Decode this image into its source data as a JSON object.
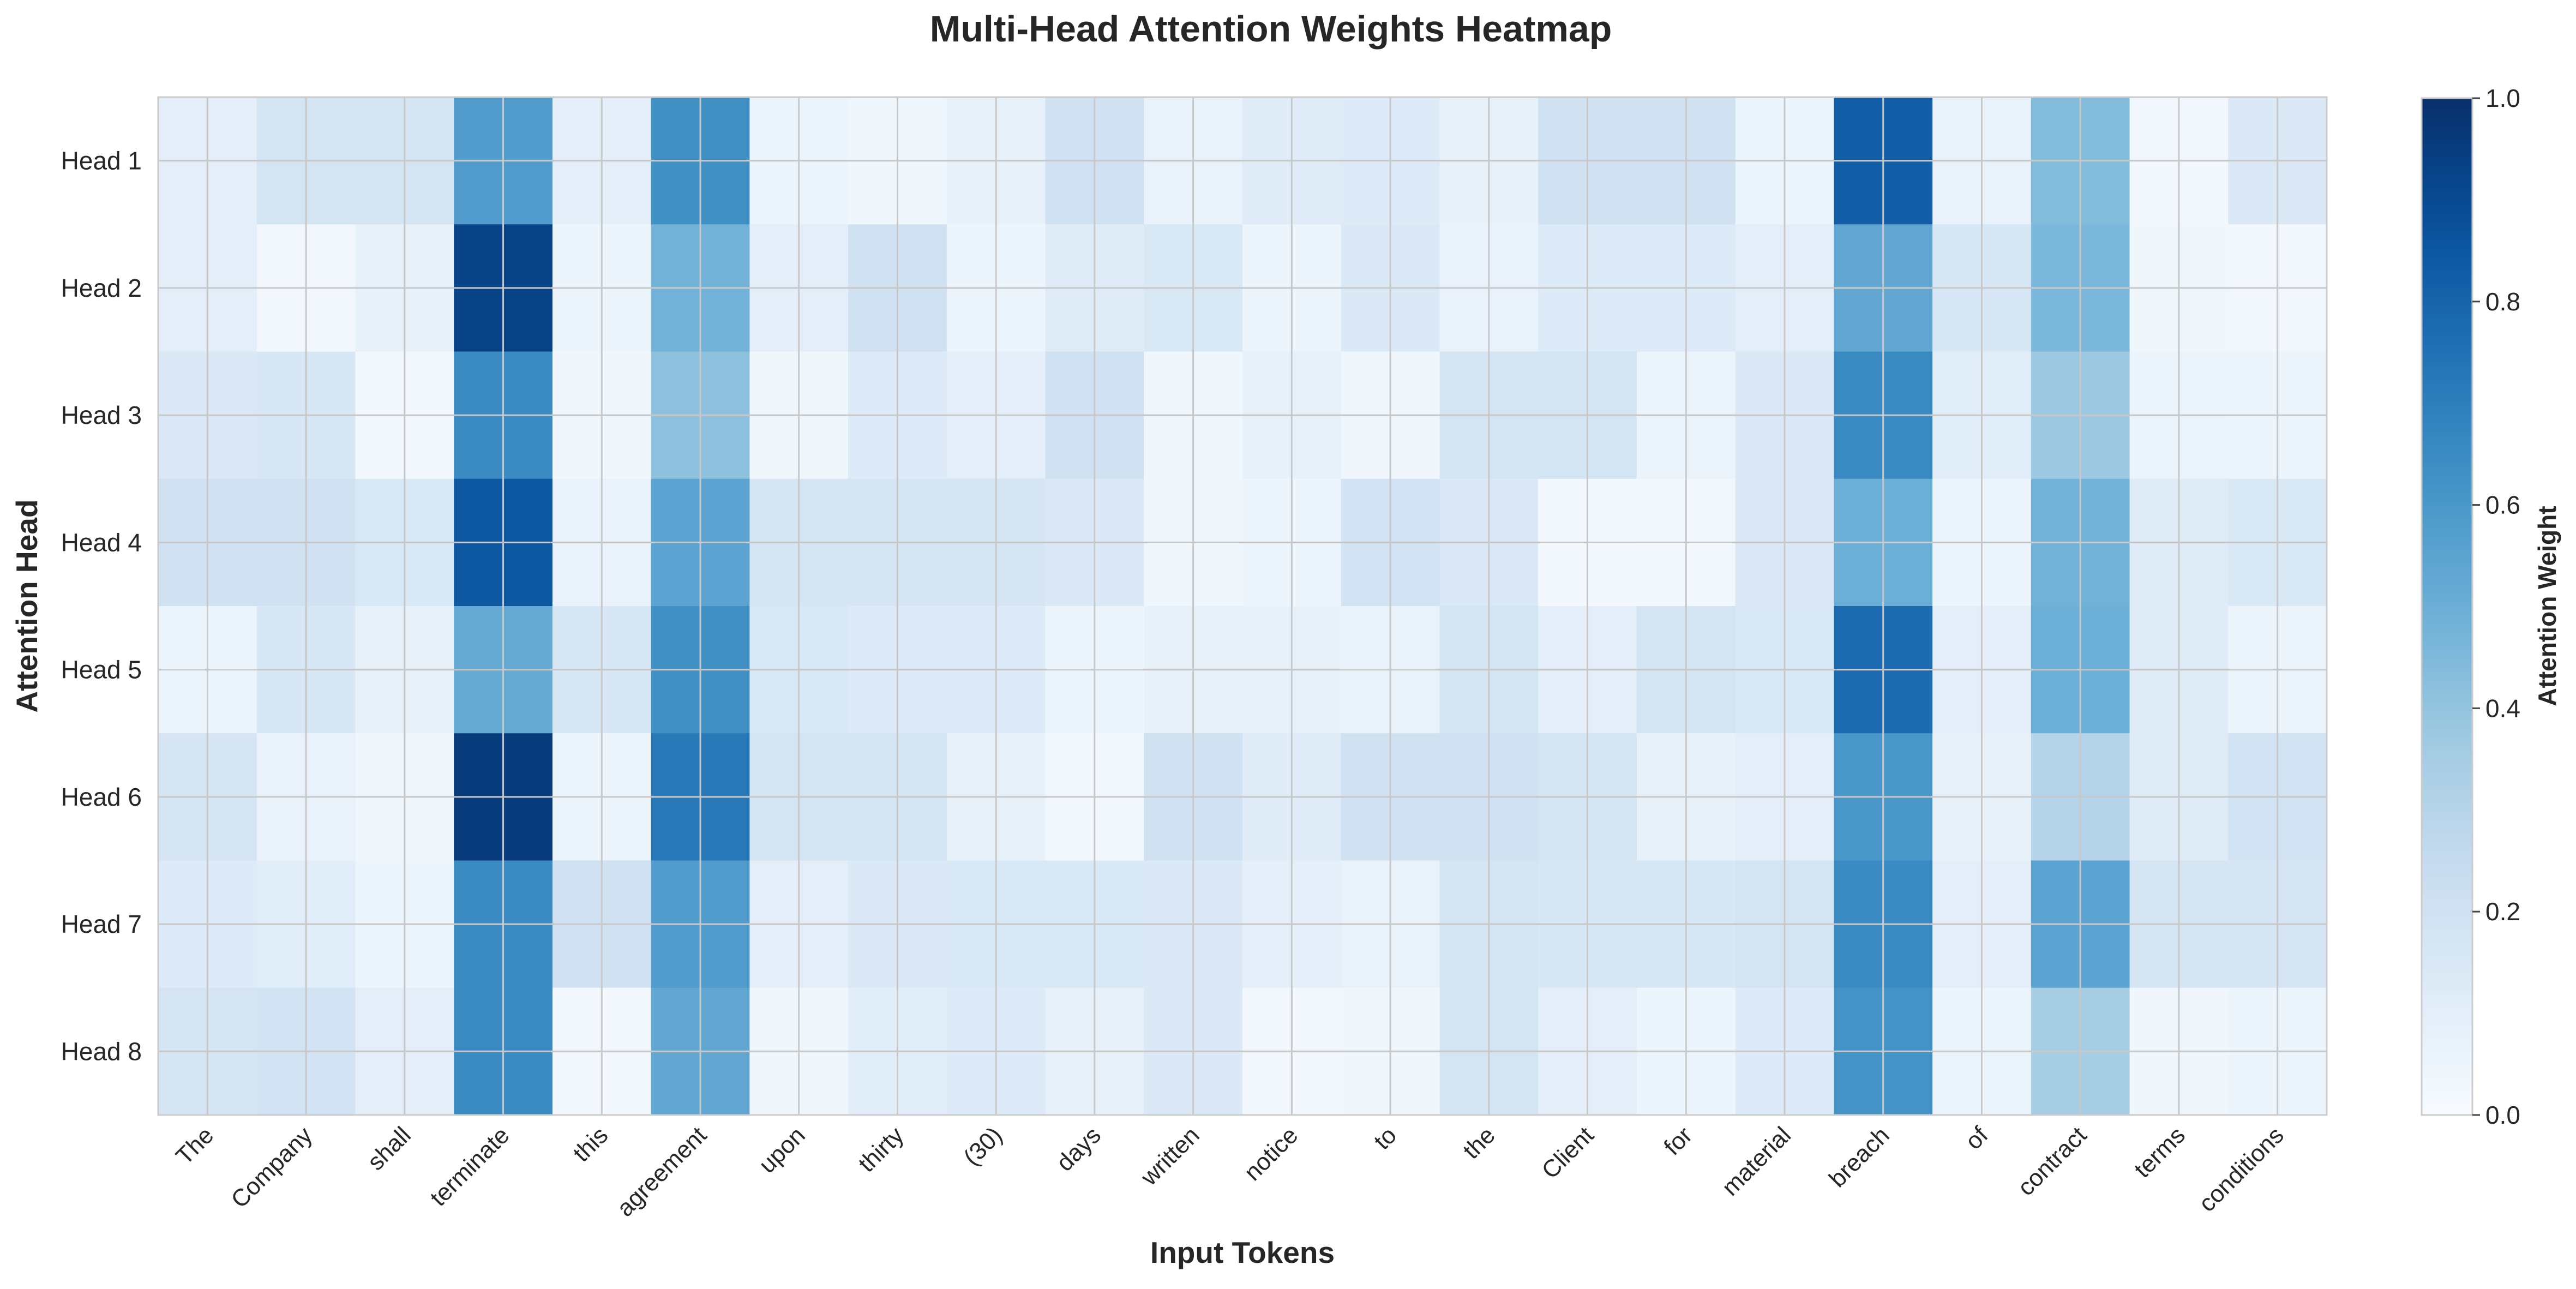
{
  "chart_data": {
    "type": "heatmap",
    "title": "Multi-Head Attention Weights Heatmap",
    "xlabel": "Input Tokens",
    "ylabel": "Attention Head",
    "x_categories": [
      "The",
      "Company",
      "shall",
      "terminate",
      "this",
      "agreement",
      "upon",
      "thirty",
      "(30)",
      "days",
      "written",
      "notice",
      "to",
      "the",
      "Client",
      "for",
      "material",
      "breach",
      "of",
      "contract",
      "terms",
      "conditions"
    ],
    "y_categories": [
      "Head 1",
      "Head 2",
      "Head 3",
      "Head 4",
      "Head 5",
      "Head 6",
      "Head 7",
      "Head 8"
    ],
    "values": [
      [
        0.1,
        0.18,
        0.18,
        0.58,
        0.1,
        0.63,
        0.05,
        0.04,
        0.08,
        0.2,
        0.07,
        0.12,
        0.13,
        0.08,
        0.2,
        0.2,
        0.05,
        0.82,
        0.07,
        0.44,
        0.03,
        0.14
      ],
      [
        0.1,
        0.03,
        0.08,
        0.93,
        0.05,
        0.48,
        0.1,
        0.2,
        0.05,
        0.12,
        0.15,
        0.05,
        0.14,
        0.07,
        0.13,
        0.13,
        0.1,
        0.53,
        0.16,
        0.46,
        0.04,
        0.03
      ],
      [
        0.14,
        0.16,
        0.02,
        0.65,
        0.04,
        0.42,
        0.04,
        0.13,
        0.09,
        0.2,
        0.04,
        0.08,
        0.04,
        0.18,
        0.18,
        0.06,
        0.14,
        0.65,
        0.11,
        0.38,
        0.06,
        0.05
      ],
      [
        0.2,
        0.2,
        0.15,
        0.85,
        0.07,
        0.55,
        0.17,
        0.17,
        0.17,
        0.14,
        0.04,
        0.05,
        0.19,
        0.14,
        0.02,
        0.03,
        0.14,
        0.5,
        0.05,
        0.48,
        0.12,
        0.15
      ],
      [
        0.05,
        0.16,
        0.08,
        0.52,
        0.16,
        0.63,
        0.15,
        0.13,
        0.13,
        0.05,
        0.08,
        0.08,
        0.07,
        0.18,
        0.1,
        0.18,
        0.15,
        0.78,
        0.1,
        0.5,
        0.12,
        0.06
      ],
      [
        0.17,
        0.07,
        0.04,
        0.96,
        0.05,
        0.72,
        0.18,
        0.18,
        0.08,
        0.03,
        0.2,
        0.12,
        0.2,
        0.2,
        0.17,
        0.08,
        0.1,
        0.6,
        0.08,
        0.3,
        0.12,
        0.19
      ],
      [
        0.13,
        0.11,
        0.05,
        0.65,
        0.2,
        0.58,
        0.1,
        0.14,
        0.15,
        0.15,
        0.14,
        0.09,
        0.07,
        0.17,
        0.16,
        0.16,
        0.18,
        0.65,
        0.1,
        0.55,
        0.17,
        0.17
      ],
      [
        0.17,
        0.19,
        0.1,
        0.65,
        0.03,
        0.53,
        0.04,
        0.11,
        0.13,
        0.08,
        0.14,
        0.03,
        0.04,
        0.18,
        0.1,
        0.05,
        0.13,
        0.62,
        0.06,
        0.35,
        0.04,
        0.05
      ]
    ],
    "colormap": "Blues",
    "vmin": 0.0,
    "vmax": 1.0,
    "colorbar": {
      "label": "Attention Weight",
      "ticks": [
        "0.0",
        "0.2",
        "0.4",
        "0.6",
        "0.8",
        "1.0"
      ]
    },
    "grid": true
  }
}
